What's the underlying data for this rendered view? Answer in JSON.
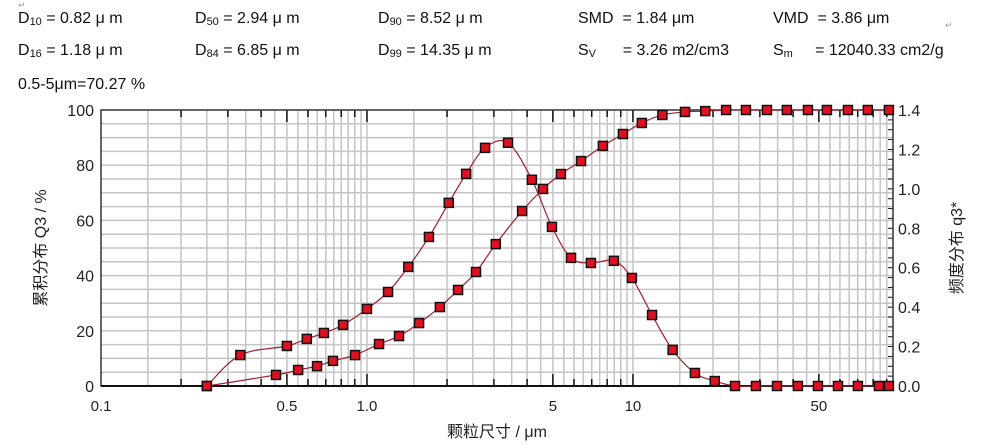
{
  "stats": {
    "row1": [
      {
        "sym": "D",
        "sub": "10",
        "val": " = 0.82 μ m"
      },
      {
        "sym": "D",
        "sub": "50",
        "val": " = 2.94 μ m"
      },
      {
        "sym": "D",
        "sub": "90",
        "val": " = 8.52 μ m"
      },
      {
        "sym": "SMD",
        "sub": "",
        "val": "  = 1.84 μm"
      },
      {
        "sym": "VMD",
        "sub": "",
        "val": "  = 3.86 μm"
      }
    ],
    "row2": [
      {
        "sym": "D",
        "sub": "16",
        "val": " = 1.18 μ m"
      },
      {
        "sym": "D",
        "sub": "84",
        "val": " = 6.85 μ m"
      },
      {
        "sym": "D",
        "sub": "99",
        "val": " = 14.35 μ m"
      },
      {
        "sym": "S",
        "sub": "V",
        "val": "      = 3.26 m2/cm3"
      },
      {
        "sym": "S",
        "sub": "m",
        "val": "     = 12040.33 cm2/g"
      }
    ],
    "row3": "0.5-5μm=70.27 %",
    "return_mark": "↵"
  },
  "chart_data": {
    "type": "line",
    "xlabel": "颗粒尺寸 / μm",
    "ylabel": "累积分布 Q3 / %",
    "y2label": "频度分布 q3*",
    "x_scale": "log",
    "xlim": [
      0.1,
      95
    ],
    "ylim": [
      0,
      100
    ],
    "y2lim": [
      0,
      1.4
    ],
    "x_ticks": [
      "0.1",
      "0.5",
      "1.0",
      "5",
      "10",
      "50"
    ],
    "x_tick_values": [
      0.1,
      0.5,
      1,
      5,
      10,
      50
    ],
    "y_ticks": [
      "0",
      "20",
      "40",
      "60",
      "80",
      "100"
    ],
    "y2_ticks": [
      "0.0",
      "0.2",
      "0.4",
      "0.6",
      "0.8",
      "1.0",
      "1.2",
      "1.4"
    ],
    "grid": true,
    "marker_color": "#e01020",
    "line_color": "#a02030",
    "series": [
      {
        "axis": "left",
        "x": [
          0.25,
          0.455,
          0.551,
          0.649,
          0.745,
          0.902,
          1.11,
          1.32,
          1.57,
          1.88,
          2.2,
          2.57,
          3.05,
          3.83,
          4.59,
          5.36,
          6.38,
          7.71,
          9.17,
          10.8,
          12.9,
          15.7,
          18.7,
          22.4,
          26.6,
          31.9,
          37.9,
          45.5,
          53.6,
          64.3,
          76.4,
          91.7
        ],
        "y": [
          0,
          4.0,
          5.8,
          7.2,
          9.1,
          11.2,
          15.2,
          18.1,
          22.8,
          28.6,
          34.8,
          41.3,
          51.4,
          63.4,
          71.4,
          76.8,
          81.5,
          87.0,
          91.3,
          95.3,
          98.2,
          99.3,
          99.6,
          100,
          100,
          100,
          100,
          100,
          100,
          100,
          100,
          100
        ]
      },
      {
        "axis": "right",
        "x": [
          0.25,
          0.334,
          0.5,
          0.594,
          0.689,
          0.813,
          1.0,
          1.2,
          1.43,
          1.71,
          2.03,
          2.36,
          2.78,
          3.39,
          4.17,
          4.96,
          5.85,
          6.95,
          8.48,
          9.91,
          11.8,
          14.1,
          17.1,
          20.3,
          24.2,
          29.0,
          34.8,
          41.7,
          49.6,
          59.0,
          70.1,
          84.1,
          91.7
        ],
        "y": [
          0,
          0.157,
          0.203,
          0.239,
          0.269,
          0.31,
          0.391,
          0.477,
          0.604,
          0.756,
          0.929,
          1.076,
          1.208,
          1.234,
          1.046,
          0.807,
          0.65,
          0.624,
          0.635,
          0.548,
          0.36,
          0.183,
          0.066,
          0.025,
          0,
          0,
          0,
          0,
          0,
          0,
          0,
          0,
          0
        ]
      }
    ]
  }
}
